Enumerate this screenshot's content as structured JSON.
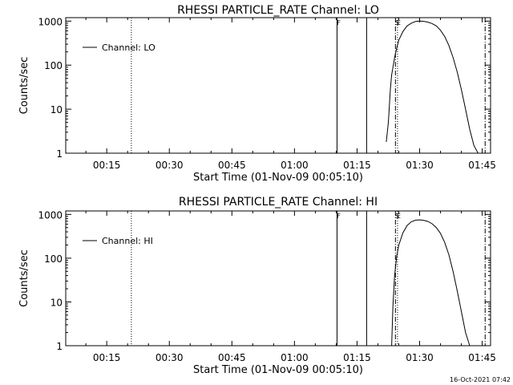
{
  "timestamp": "16-Oct-2021 07:42",
  "chart_data": [
    {
      "type": "line",
      "title": "RHESSI PARTICLE_RATE Channel: LO",
      "xlabel": "Start Time (01-Nov-09 00:05:10)",
      "ylabel": "Counts/sec",
      "yscale": "log",
      "ylim": [
        1,
        1200
      ],
      "xlim_minutes": [
        5.17,
        107.0
      ],
      "x_tick_labels": [
        "00:15",
        "00:30",
        "00:45",
        "01:00",
        "01:15",
        "01:30",
        "01:45"
      ],
      "x_tick_minutes": [
        15,
        30,
        45,
        60,
        75,
        90,
        105
      ],
      "y_tick_labels": [
        "1",
        "10",
        "100",
        "1000"
      ],
      "y_tick_values": [
        1,
        10,
        100,
        1000
      ],
      "legend": "Channel: LO",
      "legend_position": "top-left",
      "flag_labels": [
        {
          "text": "F",
          "minute": 70.6
        },
        {
          "text": "S",
          "minute": 84.6
        },
        {
          "text": "E",
          "minute": 84.6
        }
      ],
      "vertical_lines": [
        {
          "style": "dotted",
          "minute": 20.9
        },
        {
          "style": "solid",
          "minute": 70.2
        },
        {
          "style": "solid",
          "minute": 77.3
        },
        {
          "style": "dashdot",
          "minute": 84.2
        },
        {
          "style": "dotted",
          "minute": 84.7
        },
        {
          "style": "dashdot",
          "minute": 105.7
        }
      ],
      "series": [
        {
          "name": "Channel: LO",
          "minutes": [
            82.0,
            82.5,
            83.0,
            83.3,
            83.7,
            84.0,
            84.5,
            85.0,
            86.0,
            87.0,
            88.0,
            89.0,
            90.0,
            91.0,
            92.0,
            93.0,
            94.0,
            95.0,
            96.0,
            97.0,
            98.0,
            99.0,
            100.0,
            101.0,
            102.0,
            103.0,
            104.0
          ],
          "values": [
            1.8,
            5,
            30,
            60,
            100,
            150,
            240,
            370,
            580,
            780,
            900,
            980,
            1000,
            990,
            950,
            880,
            780,
            620,
            450,
            280,
            150,
            70,
            28,
            10,
            3.5,
            1.5,
            1
          ]
        }
      ]
    },
    {
      "type": "line",
      "title": "RHESSI PARTICLE_RATE Channel: HI",
      "xlabel": "Start Time (01-Nov-09 00:05:10)",
      "ylabel": "Counts/sec",
      "yscale": "log",
      "ylim": [
        1,
        1200
      ],
      "xlim_minutes": [
        5.17,
        107.0
      ],
      "x_tick_labels": [
        "00:15",
        "00:30",
        "00:45",
        "01:00",
        "01:15",
        "01:30",
        "01:45"
      ],
      "x_tick_minutes": [
        15,
        30,
        45,
        60,
        75,
        90,
        105
      ],
      "y_tick_labels": [
        "1",
        "10",
        "100",
        "1000"
      ],
      "y_tick_values": [
        1,
        10,
        100,
        1000
      ],
      "legend": "Channel: HI",
      "legend_position": "top-left",
      "flag_labels": [
        {
          "text": "F",
          "minute": 70.6
        },
        {
          "text": "S",
          "minute": 84.6
        },
        {
          "text": "E",
          "minute": 84.6
        }
      ],
      "vertical_lines": [
        {
          "style": "dotted",
          "minute": 20.9
        },
        {
          "style": "solid",
          "minute": 70.2
        },
        {
          "style": "solid",
          "minute": 77.3
        },
        {
          "style": "dashdot",
          "minute": 84.2
        },
        {
          "style": "dotted",
          "minute": 84.7
        },
        {
          "style": "dashdot",
          "minute": 105.7
        }
      ],
      "series": [
        {
          "name": "Channel: HI",
          "minutes": [
            83.3,
            83.6,
            84.0,
            84.5,
            85.0,
            86.0,
            87.0,
            88.0,
            89.0,
            90.0,
            91.0,
            92.0,
            93.0,
            94.0,
            95.0,
            96.0,
            97.0,
            98.0,
            99.0,
            100.0,
            101.0,
            102.0
          ],
          "values": [
            1,
            8,
            40,
            110,
            200,
            380,
            560,
            680,
            740,
            750,
            730,
            690,
            610,
            500,
            370,
            230,
            120,
            50,
            18,
            6,
            2,
            1
          ]
        }
      ]
    }
  ]
}
